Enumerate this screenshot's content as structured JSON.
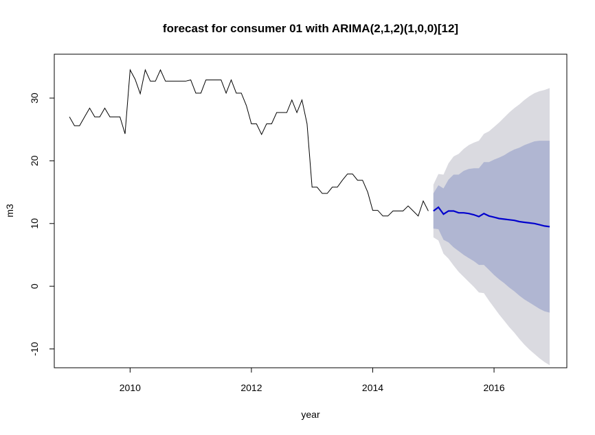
{
  "chart_data": {
    "type": "line",
    "title": "forecast for consumer 01 with ARIMA(2,1,2)(1,0,0)[12]",
    "xlabel": "year",
    "ylabel": "m3",
    "xlim": [
      2008.75,
      2017.2
    ],
    "ylim": [
      -13,
      37
    ],
    "x_ticks": [
      2010,
      2012,
      2014,
      2016
    ],
    "y_ticks": [
      -10,
      0,
      10,
      20,
      30
    ],
    "grid": false,
    "legend": "none",
    "colors": {
      "history": "#000000",
      "forecast": "#0000cd",
      "band95": "#dadae0",
      "band80": "#b0b6d2"
    },
    "series": [
      {
        "role": "history",
        "x": [
          2009.0,
          2009.083,
          2009.167,
          2009.25,
          2009.333,
          2009.417,
          2009.5,
          2009.583,
          2009.667,
          2009.75,
          2009.833,
          2009.917,
          2010.0,
          2010.083,
          2010.167,
          2010.25,
          2010.333,
          2010.417,
          2010.5,
          2010.583,
          2010.667,
          2010.75,
          2010.833,
          2010.917,
          2011.0,
          2011.083,
          2011.167,
          2011.25,
          2011.333,
          2011.417,
          2011.5,
          2011.583,
          2011.667,
          2011.75,
          2011.833,
          2011.917,
          2012.0,
          2012.083,
          2012.167,
          2012.25,
          2012.333,
          2012.417,
          2012.5,
          2012.583,
          2012.667,
          2012.75,
          2012.833,
          2012.917,
          2013.0,
          2013.083,
          2013.167,
          2013.25,
          2013.333,
          2013.417,
          2013.5,
          2013.583,
          2013.667,
          2013.75,
          2013.833,
          2013.917,
          2014.0,
          2014.083,
          2014.167,
          2014.25,
          2014.333,
          2014.417,
          2014.5,
          2014.583,
          2014.667,
          2014.75,
          2014.833,
          2014.917
        ],
        "values": [
          27,
          25.6,
          25.6,
          27,
          28.4,
          27,
          27,
          28.4,
          27,
          27,
          27,
          24.3,
          34.5,
          33,
          30.7,
          34.5,
          32.7,
          32.7,
          34.5,
          32.7,
          32.7,
          32.7,
          32.7,
          32.7,
          32.9,
          30.8,
          30.8,
          32.9,
          32.9,
          32.9,
          32.9,
          30.8,
          32.9,
          30.8,
          30.8,
          28.8,
          25.9,
          25.9,
          24.2,
          25.9,
          25.9,
          27.7,
          27.7,
          27.7,
          29.7,
          27.7,
          29.7,
          25.9,
          15.8,
          15.8,
          14.8,
          14.8,
          15.8,
          15.8,
          16.9,
          17.9,
          17.9,
          16.9,
          16.9,
          15,
          12.1,
          12.1,
          11.2,
          11.2,
          12,
          12,
          12,
          12.8,
          12,
          11.2,
          13.6,
          12
        ]
      },
      {
        "role": "forecast",
        "x": [
          2015.0,
          2015.083,
          2015.167,
          2015.25,
          2015.333,
          2015.417,
          2015.5,
          2015.583,
          2015.667,
          2015.75,
          2015.833,
          2015.917,
          2016.0,
          2016.083,
          2016.167,
          2016.25,
          2016.333,
          2016.417,
          2016.5,
          2016.583,
          2016.667,
          2016.75,
          2016.833,
          2016.917
        ],
        "values": [
          12,
          12.6,
          11.5,
          12,
          12,
          11.7,
          11.7,
          11.6,
          11.4,
          11.1,
          11.6,
          11.2,
          11,
          10.8,
          10.7,
          10.6,
          10.5,
          10.3,
          10.2,
          10.1,
          10,
          9.8,
          9.6,
          9.5
        ],
        "lower80": [
          9.2,
          9.1,
          7.4,
          7.0,
          6.2,
          5.6,
          5.0,
          4.5,
          4.0,
          3.4,
          3.4,
          2.6,
          1.8,
          1.1,
          0.5,
          -0.2,
          -0.8,
          -1.5,
          -2.1,
          -2.6,
          -3.1,
          -3.6,
          -4.0,
          -4.2
        ],
        "upper80": [
          14.8,
          16.1,
          15.6,
          17.0,
          17.8,
          17.8,
          18.4,
          18.7,
          18.8,
          18.8,
          19.8,
          19.8,
          20.2,
          20.5,
          20.9,
          21.4,
          21.8,
          22.1,
          22.5,
          22.8,
          23.1,
          23.2,
          23.2,
          23.2
        ],
        "lower95": [
          7.8,
          7.3,
          5.2,
          4.4,
          3.3,
          2.3,
          1.5,
          0.7,
          -0.1,
          -1.0,
          -1.1,
          -2.3,
          -3.4,
          -4.5,
          -5.5,
          -6.5,
          -7.4,
          -8.4,
          -9.3,
          -10.1,
          -10.8,
          -11.5,
          -12.1,
          -12.6
        ],
        "upper95": [
          16.2,
          17.9,
          17.8,
          19.6,
          20.7,
          21.1,
          21.9,
          22.5,
          22.9,
          23.2,
          24.3,
          24.7,
          25.4,
          26.1,
          26.9,
          27.7,
          28.4,
          29.0,
          29.7,
          30.3,
          30.8,
          31.1,
          31.3,
          31.6
        ]
      }
    ]
  }
}
